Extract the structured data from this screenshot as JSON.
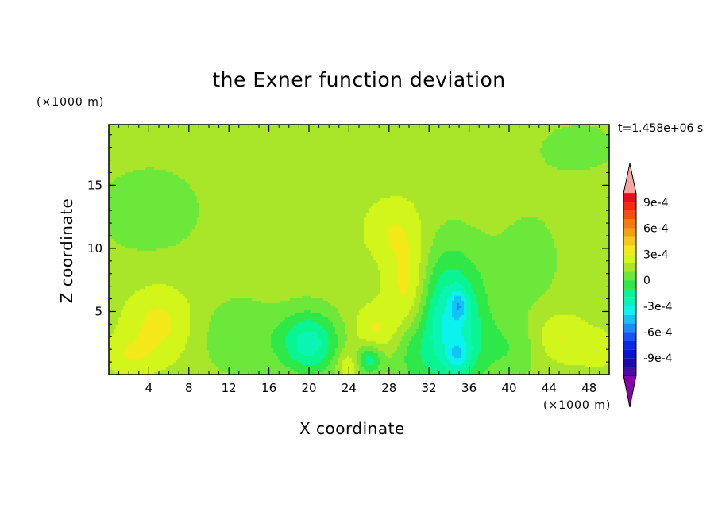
{
  "chart_data": {
    "type": "heatmap",
    "title": "the Exner function deviation",
    "xlabel": "X coordinate",
    "ylabel": "Z coordinate",
    "x_unit_label": "(×1000 m)",
    "y_unit_label": "(×1000 m)",
    "time_label": "t=1.458e+06 s",
    "xlim": [
      0,
      50
    ],
    "ylim": [
      0,
      19.8
    ],
    "x_ticks": [
      4,
      8,
      12,
      16,
      20,
      24,
      28,
      32,
      36,
      40,
      44,
      48
    ],
    "y_ticks": [
      5,
      10,
      15
    ],
    "colorbar": {
      "levels": [
        -0.0011,
        -0.001,
        -0.0009,
        -0.0008,
        -0.0007,
        -0.0006,
        -0.0005,
        -0.0004,
        -0.0003,
        -0.0002,
        -0.0001,
        0,
        0.0001,
        0.0002,
        0.0003,
        0.0004,
        0.0005,
        0.0006,
        0.0007,
        0.0008,
        0.0009,
        0.001
      ],
      "colors": [
        "#4a0aa8",
        "#1f08b0",
        "#0a14c8",
        "#0a2ae8",
        "#1855f5",
        "#1b8cf5",
        "#12c3f5",
        "#0cf2ee",
        "#0af5b4",
        "#0af591",
        "#2ee84a",
        "#6ce83a",
        "#a9e62a",
        "#d2f51a",
        "#f2e81a",
        "#f5c81a",
        "#f5a00f",
        "#f57a0f",
        "#f5500f",
        "#f52a0f",
        "#e6101a"
      ],
      "under_color": "#8800aa",
      "over_color": "#f5a3a3",
      "tick_labels": [
        "9e-4",
        "6e-4",
        "3e-4",
        "0",
        "-3e-4",
        "-6e-4",
        "-9e-4"
      ],
      "tick_values": [
        0.0009,
        0.0006,
        0.0003,
        0,
        -0.0003,
        -0.0006,
        -0.0009
      ]
    },
    "field": {
      "background": 0.00015,
      "features": [
        {
          "x": 4,
          "z": 13,
          "sx": 6,
          "sz": 4,
          "a": -0.0001
        },
        {
          "x": 47,
          "z": 18,
          "sx": 6,
          "sz": 3,
          "a": -7e-05
        },
        {
          "x": 42,
          "z": 9,
          "sx": 4,
          "sz": 5,
          "a": -8e-05
        },
        {
          "x": 5,
          "z": 4,
          "sx": 3.5,
          "sz": 3,
          "a": 0.00018
        },
        {
          "x": 2,
          "z": 1.5,
          "sx": 2.5,
          "sz": 1.5,
          "a": 0.00012
        },
        {
          "x": 13,
          "z": 3,
          "sx": 4,
          "sz": 3,
          "a": -0.00014
        },
        {
          "x": 20,
          "z": 2.5,
          "sx": 3,
          "sz": 2.5,
          "a": -0.0004
        },
        {
          "x": 30,
          "z": 6,
          "sx": 2.2,
          "sz": 5,
          "a": 0.00026
        },
        {
          "x": 28,
          "z": 11.5,
          "sx": 2.8,
          "sz": 2.5,
          "a": 0.00012
        },
        {
          "x": 26.5,
          "z": 3.5,
          "sx": 2.2,
          "sz": 2,
          "a": 0.00016
        },
        {
          "x": 24,
          "z": 0.8,
          "sx": 1.2,
          "sz": 1.2,
          "a": 0.00018
        },
        {
          "x": 26,
          "z": 1.2,
          "sx": 1.4,
          "sz": 1.2,
          "a": -0.00032
        },
        {
          "x": 34,
          "z": 4,
          "sx": 3.5,
          "sz": 5.5,
          "a": -0.00048
        },
        {
          "x": 35,
          "z": 5.5,
          "sx": 0.8,
          "sz": 1.2,
          "a": -0.00025
        },
        {
          "x": 35,
          "z": 1.5,
          "sx": 1.2,
          "sz": 1.2,
          "a": -0.0002
        },
        {
          "x": 30,
          "z": 2,
          "sx": 2,
          "sz": 3,
          "a": -0.0002
        },
        {
          "x": 40,
          "z": 2,
          "sx": 3,
          "sz": 2.5,
          "a": -0.00012
        },
        {
          "x": 45,
          "z": 3,
          "sx": 2.5,
          "sz": 2,
          "a": 0.00016
        },
        {
          "x": 49,
          "z": 2,
          "sx": 2.5,
          "sz": 2,
          "a": 8e-05
        }
      ]
    }
  }
}
